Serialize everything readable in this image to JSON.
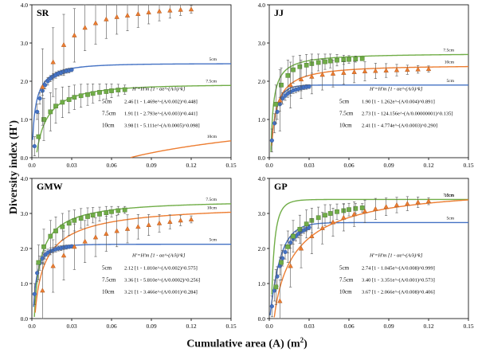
{
  "figure": {
    "ylabel": "Diversity index (H')",
    "xlabel_text": "Cumulative area (A) (m",
    "xlabel_sup": "2",
    "xlabel_close": ")"
  },
  "colors": {
    "blue": "#4472C4",
    "green": "#70AD47",
    "orange": "#ED7D31",
    "grid": "#000000"
  },
  "chart_data": [
    {
      "type": "scatter",
      "title": "SR",
      "xlim": [
        0,
        0.15
      ],
      "ylim": [
        0,
        4.0
      ],
      "xticks": [
        "0.0",
        "0.03",
        "0.06",
        "0.09",
        "0.12",
        "0.15"
      ],
      "yticks": [
        "0.0",
        "1.0",
        "2.0",
        "3.0",
        "4.0"
      ],
      "formula_header": "H'=H'm [1 - αe^-(A/λ)^k]",
      "series": [
        {
          "name": "5cm",
          "marker": "circle",
          "color": "blue",
          "fit": {
            "Hm": 2.46,
            "alpha": 1.469,
            "lambda": 0.002,
            "k": 0.448
          },
          "x": [
            0.002,
            0.004,
            0.006,
            0.008,
            0.01,
            0.012,
            0.014,
            0.016,
            0.018,
            0.02,
            0.022,
            0.024,
            0.026,
            0.028,
            0.03
          ],
          "y": [
            0.3,
            1.2,
            1.55,
            1.75,
            1.9,
            2.0,
            2.07,
            2.12,
            2.16,
            2.2,
            2.22,
            2.25,
            2.27,
            2.28,
            2.3
          ],
          "err": [
            0.25,
            0.2,
            0.15,
            0.12,
            0.1,
            0.1,
            0.08,
            0.08,
            0.08,
            0.07,
            0.07,
            0.06,
            0.06,
            0.06,
            0.05
          ]
        },
        {
          "name": "7.5cm",
          "marker": "square",
          "color": "green",
          "fit": {
            "Hm": 1.91,
            "alpha": 2.793,
            "lambda": 0.003,
            "k": 0.441
          },
          "x": [
            0.005,
            0.009,
            0.014,
            0.018,
            0.023,
            0.028,
            0.032,
            0.037,
            0.042,
            0.046,
            0.051,
            0.056,
            0.06,
            0.065,
            0.07
          ],
          "y": [
            0.55,
            1.0,
            1.2,
            1.35,
            1.45,
            1.52,
            1.58,
            1.62,
            1.65,
            1.68,
            1.71,
            1.73,
            1.75,
            1.77,
            1.78
          ],
          "err": [
            0.6,
            0.55,
            0.5,
            0.45,
            0.4,
            0.35,
            0.32,
            0.3,
            0.28,
            0.25,
            0.22,
            0.2,
            0.18,
            0.15,
            0.12
          ]
        },
        {
          "name": "10cm",
          "marker": "triangle",
          "color": "orange",
          "fit": {
            "Hm": 3.98,
            "alpha": 5.111,
            "lambda": 0.0005,
            "k": 0.098
          },
          "x": [
            0.008,
            0.016,
            0.024,
            0.032,
            0.04,
            0.048,
            0.056,
            0.064,
            0.072,
            0.08,
            0.088,
            0.096,
            0.104,
            0.112,
            0.12
          ],
          "y": [
            1.85,
            2.5,
            2.95,
            3.2,
            3.4,
            3.52,
            3.62,
            3.68,
            3.72,
            3.76,
            3.8,
            3.83,
            3.85,
            3.87,
            3.88
          ],
          "err": [
            1.0,
            0.9,
            0.8,
            0.7,
            0.6,
            0.55,
            0.5,
            0.45,
            0.4,
            0.35,
            0.3,
            0.25,
            0.2,
            0.15,
            0.1
          ]
        }
      ],
      "formula_rows": [
        {
          "label": "5cm",
          "text": "2.46 [1 - 1.469e^-(A/0.002)^0.448]"
        },
        {
          "label": "7.5cm",
          "text": "1.91 [1 - 2.793e^-(A/0.003)^0.441]"
        },
        {
          "label": "10cm",
          "text": "3.98 [1 - 5.111e^-(A/0.0005)^0.098]"
        }
      ]
    },
    {
      "type": "scatter",
      "title": "JJ",
      "xlim": [
        0,
        0.15
      ],
      "ylim": [
        0,
        4.0
      ],
      "xticks": [
        "0.0",
        "0.03",
        "0.06",
        "0.09",
        "0.12",
        "0.15"
      ],
      "yticks": [
        "0.0",
        "1.0",
        "2.0",
        "3.0",
        "4.0"
      ],
      "formula_header": "H'=H'm [1 - αe^-(A/λ)^k]",
      "series": [
        {
          "name": "5cm",
          "marker": "circle",
          "color": "blue",
          "fit": {
            "Hm": 1.9,
            "alpha": 1.262,
            "lambda": 0.004,
            "k": 0.891
          },
          "x": [
            0.002,
            0.004,
            0.006,
            0.008,
            0.01,
            0.012,
            0.014,
            0.016,
            0.018,
            0.02,
            0.022,
            0.024,
            0.026,
            0.028,
            0.03
          ],
          "y": [
            0.45,
            0.9,
            1.2,
            1.4,
            1.55,
            1.62,
            1.68,
            1.72,
            1.76,
            1.78,
            1.8,
            1.82,
            1.84,
            1.85,
            1.86
          ],
          "err": [
            0.3,
            0.25,
            0.2,
            0.18,
            0.15,
            0.12,
            0.1,
            0.1,
            0.08,
            0.08,
            0.07,
            0.07,
            0.06,
            0.06,
            0.05
          ]
        },
        {
          "name": "7.5cm",
          "marker": "square",
          "color": "green",
          "fit": {
            "Hm": 2.73,
            "alpha": 124.156,
            "lambda": 1e-08,
            "k": 0.135
          },
          "x": [
            0.005,
            0.009,
            0.014,
            0.018,
            0.023,
            0.028,
            0.032,
            0.037,
            0.042,
            0.046,
            0.051,
            0.056,
            0.06,
            0.065,
            0.07
          ],
          "y": [
            1.4,
            1.9,
            2.15,
            2.3,
            2.38,
            2.42,
            2.46,
            2.49,
            2.51,
            2.53,
            2.55,
            2.56,
            2.57,
            2.58,
            2.59
          ],
          "err": [
            0.5,
            0.45,
            0.4,
            0.35,
            0.3,
            0.28,
            0.25,
            0.22,
            0.2,
            0.18,
            0.15,
            0.12,
            0.1,
            0.08,
            0.05
          ]
        },
        {
          "name": "10cm",
          "marker": "triangle",
          "color": "orange",
          "fit": {
            "Hm": 2.41,
            "alpha": 4.774,
            "lambda": 0.0003,
            "k": 0.29
          },
          "x": [
            0.008,
            0.016,
            0.024,
            0.032,
            0.04,
            0.048,
            0.056,
            0.064,
            0.072,
            0.08,
            0.088,
            0.096,
            0.104,
            0.112,
            0.12
          ],
          "y": [
            1.5,
            1.9,
            2.05,
            2.12,
            2.17,
            2.2,
            2.22,
            2.24,
            2.26,
            2.27,
            2.28,
            2.29,
            2.3,
            2.31,
            2.32
          ],
          "err": [
            0.8,
            0.6,
            0.5,
            0.45,
            0.4,
            0.35,
            0.3,
            0.28,
            0.25,
            0.2,
            0.18,
            0.15,
            0.12,
            0.1,
            0.08
          ]
        }
      ],
      "formula_rows": [
        {
          "label": "5cm",
          "text": "1.90 [1 - 1.262e^-(A/0.004)^0.891]"
        },
        {
          "label": "7.5cm",
          "text": "2.73 [1 - 124.156e^-(A/0.00000001)^0.135]"
        },
        {
          "label": "10cm",
          "text": "2.41 [1 - 4.774e^-(A/0.0003)^0.290]"
        }
      ]
    },
    {
      "type": "scatter",
      "title": "GMW",
      "xlim": [
        0,
        0.15
      ],
      "ylim": [
        0,
        4.0
      ],
      "xticks": [
        "0.0",
        "0.03",
        "0.06",
        "0.09",
        "0.12",
        "0.15"
      ],
      "yticks": [
        "0.0",
        "1.0",
        "2.0",
        "3.0",
        "4.0"
      ],
      "formula_header": "H'=H'm [1 - αe^-(A/λ)^k]",
      "series": [
        {
          "name": "5cm",
          "marker": "circle",
          "color": "blue",
          "fit": {
            "Hm": 2.12,
            "alpha": 1.81,
            "lambda": 0.002,
            "k": 0.575
          },
          "x": [
            0.002,
            0.004,
            0.006,
            0.008,
            0.01,
            0.012,
            0.014,
            0.016,
            0.018,
            0.02,
            0.022,
            0.024,
            0.026,
            0.028,
            0.03
          ],
          "y": [
            0.7,
            1.3,
            1.58,
            1.72,
            1.82,
            1.88,
            1.92,
            1.95,
            1.98,
            2.0,
            2.01,
            2.03,
            2.04,
            2.05,
            2.06
          ],
          "err": [
            0.3,
            0.25,
            0.2,
            0.15,
            0.12,
            0.1,
            0.1,
            0.08,
            0.08,
            0.07,
            0.07,
            0.06,
            0.06,
            0.05,
            0.05
          ]
        },
        {
          "name": "7.5cm",
          "marker": "square",
          "color": "green",
          "fit": {
            "Hm": 3.36,
            "alpha": 5.81,
            "lambda": 0.0002,
            "k": 0.256
          },
          "x": [
            0.005,
            0.009,
            0.014,
            0.018,
            0.023,
            0.028,
            0.032,
            0.037,
            0.042,
            0.046,
            0.051,
            0.056,
            0.06,
            0.065,
            0.07
          ],
          "y": [
            1.6,
            2.05,
            2.35,
            2.5,
            2.62,
            2.72,
            2.8,
            2.86,
            2.91,
            2.95,
            2.98,
            3.02,
            3.05,
            3.08,
            3.1
          ],
          "err": [
            0.5,
            0.5,
            0.45,
            0.4,
            0.38,
            0.35,
            0.3,
            0.28,
            0.25,
            0.22,
            0.2,
            0.18,
            0.15,
            0.12,
            0.1
          ]
        },
        {
          "name": "10cm",
          "marker": "triangle",
          "color": "orange",
          "fit": {
            "Hm": 3.21,
            "alpha": 3.466,
            "lambda": 0.001,
            "k": 0.284
          },
          "x": [
            0.008,
            0.016,
            0.024,
            0.032,
            0.04,
            0.048,
            0.056,
            0.064,
            0.072,
            0.08,
            0.088,
            0.096,
            0.104,
            0.112,
            0.12
          ],
          "y": [
            0.8,
            1.5,
            1.8,
            2.05,
            2.2,
            2.32,
            2.42,
            2.5,
            2.56,
            2.62,
            2.67,
            2.72,
            2.76,
            2.8,
            2.83
          ],
          "err": [
            0.8,
            0.75,
            0.7,
            0.65,
            0.6,
            0.55,
            0.5,
            0.45,
            0.4,
            0.35,
            0.3,
            0.25,
            0.2,
            0.15,
            0.1
          ]
        }
      ],
      "formula_rows": [
        {
          "label": "5cm",
          "text": "2.12 [1 - 1.810e^-(A/0.002)^0.575]"
        },
        {
          "label": "7.5cm",
          "text": "3.36 [1 - 5.810e^-(A/0.0002)^0.256]"
        },
        {
          "label": "10cm",
          "text": "3.21 [1 - 3.466e^-(A/0.001)^0.284]"
        }
      ]
    },
    {
      "type": "scatter",
      "title": "GP",
      "xlim": [
        0,
        0.15
      ],
      "ylim": [
        0,
        4.0
      ],
      "xticks": [
        "0.0",
        "0.03",
        "0.06",
        "0.09",
        "0.12",
        "0.15"
      ],
      "yticks": [
        "0.0",
        "1.0",
        "2.0",
        "3.0",
        "4.0"
      ],
      "formula_header": "H'=H'm [1 - αe^-(A/λ)^k]",
      "series": [
        {
          "name": "5cm",
          "marker": "circle",
          "color": "blue",
          "fit": {
            "Hm": 2.74,
            "alpha": 1.045,
            "lambda": 0.008,
            "k": 0.999
          },
          "x": [
            0.002,
            0.004,
            0.006,
            0.008,
            0.01,
            0.012,
            0.014,
            0.016,
            0.018,
            0.02,
            0.022,
            0.024,
            0.026,
            0.028,
            0.03
          ],
          "y": [
            0.35,
            0.8,
            1.2,
            1.5,
            1.72,
            1.9,
            2.05,
            2.17,
            2.27,
            2.35,
            2.42,
            2.48,
            2.52,
            2.56,
            2.6
          ],
          "err": [
            0.3,
            0.3,
            0.28,
            0.25,
            0.22,
            0.2,
            0.18,
            0.16,
            0.15,
            0.14,
            0.12,
            0.1,
            0.09,
            0.08,
            0.07
          ]
        },
        {
          "name": "7.5cm",
          "marker": "square",
          "color": "green",
          "fit": {
            "Hm": 3.4,
            "alpha": 3.351,
            "lambda": 0.001,
            "k": 0.573
          },
          "x": [
            0.005,
            0.009,
            0.014,
            0.018,
            0.023,
            0.028,
            0.032,
            0.037,
            0.042,
            0.046,
            0.051,
            0.056,
            0.06,
            0.065,
            0.07
          ],
          "y": [
            0.9,
            1.6,
            2.05,
            2.35,
            2.55,
            2.7,
            2.8,
            2.88,
            2.95,
            3.0,
            3.05,
            3.08,
            3.11,
            3.14,
            3.16
          ],
          "err": [
            0.5,
            0.5,
            0.45,
            0.45,
            0.4,
            0.4,
            0.35,
            0.3,
            0.3,
            0.25,
            0.22,
            0.2,
            0.18,
            0.15,
            0.12
          ]
        },
        {
          "name": "10cm",
          "marker": "triangle",
          "color": "orange",
          "fit": {
            "Hm": 3.67,
            "alpha": 2.066,
            "lambda": 0.008,
            "k": 0.406
          },
          "x": [
            0.008,
            0.016,
            0.024,
            0.032,
            0.04,
            0.048,
            0.056,
            0.064,
            0.072,
            0.08,
            0.088,
            0.096,
            0.104,
            0.112,
            0.12
          ],
          "y": [
            0.5,
            1.5,
            2.0,
            2.35,
            2.58,
            2.75,
            2.88,
            2.98,
            3.06,
            3.13,
            3.19,
            3.24,
            3.28,
            3.32,
            3.35
          ],
          "err": [
            0.6,
            0.6,
            0.55,
            0.5,
            0.45,
            0.4,
            0.38,
            0.35,
            0.32,
            0.3,
            0.25,
            0.22,
            0.2,
            0.15,
            0.1
          ]
        }
      ],
      "formula_rows": [
        {
          "label": "5cm",
          "text": "2.74 [1 - 1.045e^-(A/0.008)^0.999]"
        },
        {
          "label": "7.5cm",
          "text": "3.40 [1 - 3.351e^-(A/0.001)^0.573]"
        },
        {
          "label": "10cm",
          "text": "3.67 [1 - 2.066e^-(A/0.008)^0.406]"
        }
      ]
    }
  ]
}
